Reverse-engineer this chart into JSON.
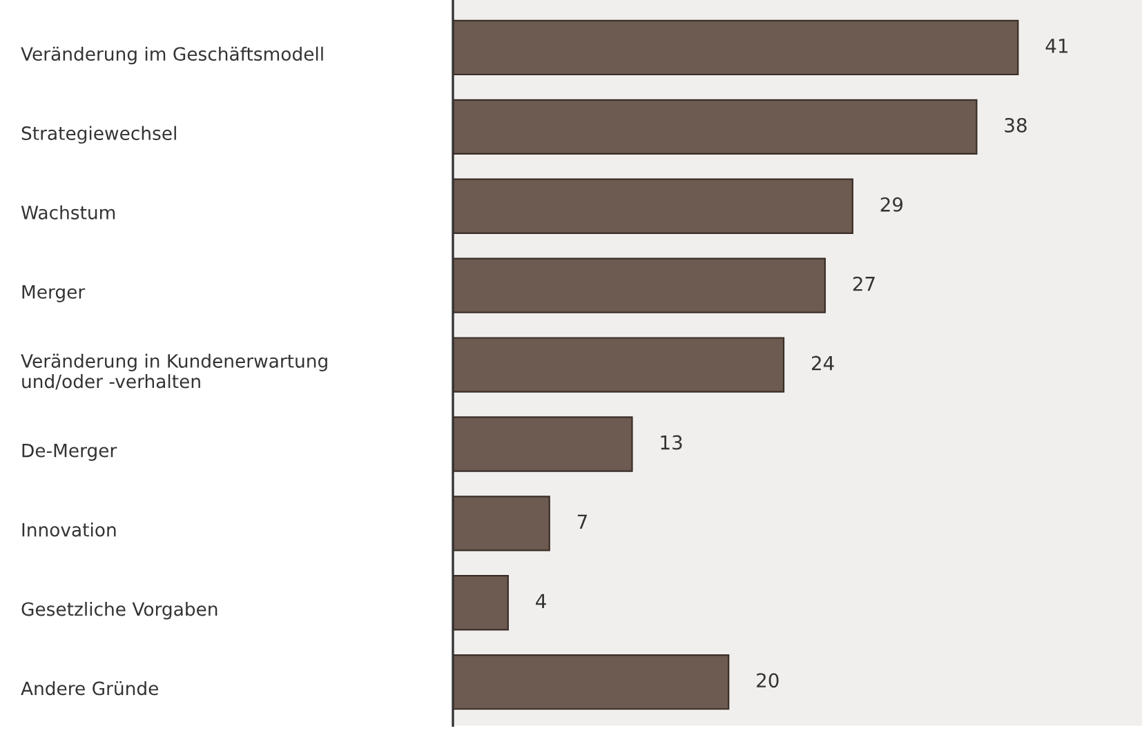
{
  "chart_data": {
    "type": "bar",
    "orientation": "horizontal",
    "categories": [
      "Veränderung im Geschäftsmodell",
      "Strategiewechsel",
      "Wachstum",
      "Merger",
      "Veränderung in Kundenerwartung\nund/oder -verhalten",
      "De-Merger",
      "Innovation",
      "Gesetzliche Vorgaben",
      "Andere Gründe"
    ],
    "values": [
      41,
      38,
      29,
      27,
      24,
      13,
      7,
      4,
      20
    ],
    "color": "#6d5a50",
    "data_labels": true,
    "xlim": [
      0,
      50
    ],
    "tick_labels": "y"
  }
}
